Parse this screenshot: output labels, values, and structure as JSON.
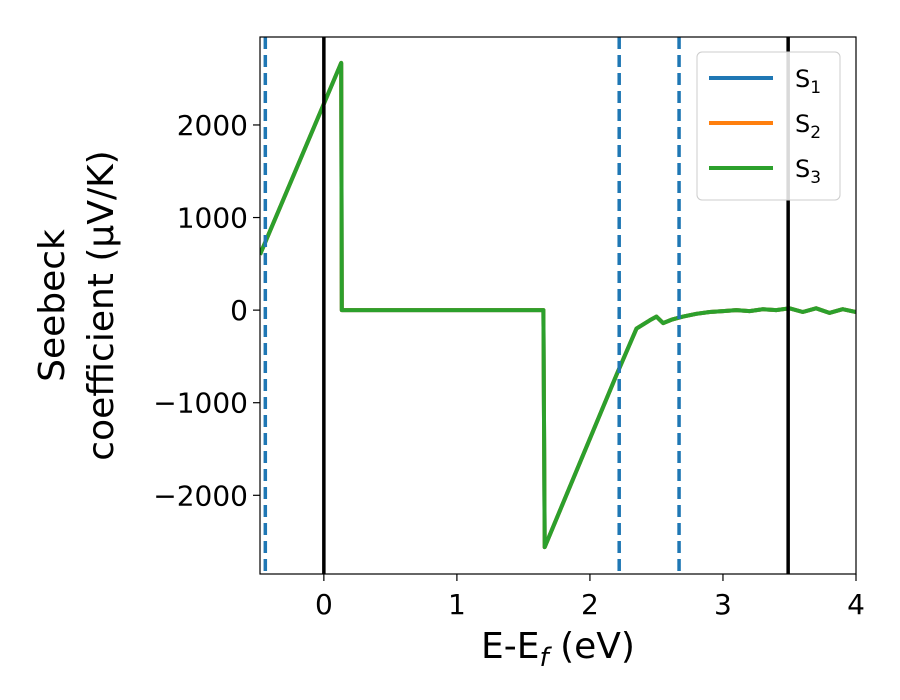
{
  "chart_data": {
    "type": "line",
    "xlabel": "E-E_f (eV)",
    "xlabel_parts": {
      "main": "E-E",
      "sub": "f",
      "unit": " (eV)"
    },
    "ylabel": "Seebeck coefficient (μV/K)",
    "ylabel_lines": [
      "Seebeck",
      "coefficient  (μV/K)"
    ],
    "xlim": [
      -0.48,
      4.0
    ],
    "ylim": [
      -2850,
      2950
    ],
    "x_ticks": [
      0,
      1,
      2,
      3,
      4
    ],
    "x_tick_labels": [
      "0",
      "1",
      "2",
      "3",
      "4"
    ],
    "y_ticks": [
      -2000,
      -1000,
      0,
      1000,
      2000
    ],
    "y_tick_labels": [
      "−2000",
      "−1000",
      "0",
      "1000",
      "2000"
    ],
    "grid": false,
    "legend_position": "top-right",
    "legend": [
      {
        "main": "S",
        "sub": "1",
        "color": "#1f77b4"
      },
      {
        "main": "S",
        "sub": "2",
        "color": "#ff7f0e"
      },
      {
        "main": "S",
        "sub": "3",
        "color": "#2ca02c"
      }
    ],
    "vertical_lines": [
      {
        "x": -0.44,
        "style": "dashed",
        "color": "#1f77b4"
      },
      {
        "x": 0.0,
        "style": "solid",
        "color": "#000000"
      },
      {
        "x": 2.22,
        "style": "dashed",
        "color": "#1f77b4"
      },
      {
        "x": 2.67,
        "style": "dashed",
        "color": "#1f77b4"
      },
      {
        "x": 3.49,
        "style": "solid",
        "color": "#000000"
      }
    ],
    "series": [
      {
        "name": "S1",
        "color": "#1f77b4",
        "x": [
          -0.48,
          0.13,
          0.135,
          1.65,
          1.66,
          2.2,
          2.35,
          2.45,
          2.5,
          2.55,
          2.62,
          2.7,
          2.8,
          2.9,
          3.0,
          3.1,
          3.2,
          3.3,
          3.4,
          3.5,
          3.6,
          3.7,
          3.8,
          3.9,
          4.0
        ],
        "y": [
          600,
          2670,
          0,
          0,
          -2560,
          -700,
          -200,
          -110,
          -70,
          -140,
          -100,
          -70,
          -40,
          -20,
          -10,
          0,
          -10,
          10,
          0,
          20,
          -20,
          20,
          -30,
          10,
          -20
        ]
      },
      {
        "name": "S2",
        "color": "#ff7f0e",
        "x": [
          -0.48,
          0.13,
          0.135,
          1.65,
          1.66,
          2.2,
          2.35,
          2.45,
          2.5,
          2.55,
          2.62,
          2.7,
          2.8,
          2.9,
          3.0,
          3.1,
          3.2,
          3.3,
          3.4,
          3.5,
          3.6,
          3.7,
          3.8,
          3.9,
          4.0
        ],
        "y": [
          600,
          2670,
          0,
          0,
          -2560,
          -700,
          -200,
          -110,
          -70,
          -140,
          -100,
          -70,
          -40,
          -20,
          -10,
          0,
          -10,
          10,
          0,
          20,
          -20,
          20,
          -30,
          10,
          -20
        ]
      },
      {
        "name": "S3",
        "color": "#2ca02c",
        "x": [
          -0.48,
          0.13,
          0.135,
          1.65,
          1.66,
          2.2,
          2.35,
          2.45,
          2.5,
          2.55,
          2.62,
          2.7,
          2.8,
          2.9,
          3.0,
          3.1,
          3.2,
          3.3,
          3.4,
          3.5,
          3.6,
          3.7,
          3.8,
          3.9,
          4.0
        ],
        "y": [
          600,
          2670,
          0,
          0,
          -2560,
          -700,
          -200,
          -110,
          -70,
          -140,
          -100,
          -70,
          -40,
          -20,
          -10,
          0,
          -10,
          10,
          0,
          20,
          -20,
          20,
          -30,
          10,
          -20
        ]
      }
    ]
  }
}
